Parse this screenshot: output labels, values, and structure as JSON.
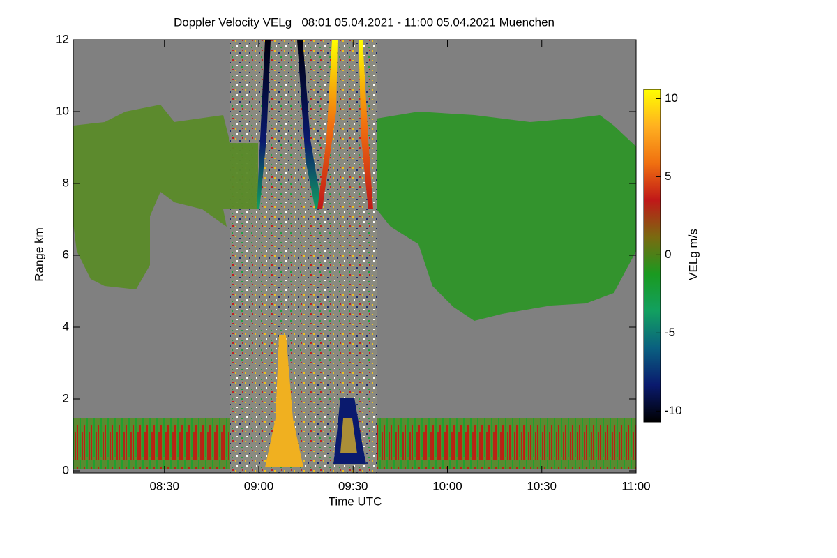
{
  "chart_data": {
    "type": "heatmap",
    "title": "Doppler Velocity VELg   08:01 05.04.2021 - 11:00 05.04.2021 Muenchen",
    "x_label": "Time UTC",
    "y_label": "Range km",
    "xlim": [
      "08:01",
      "11:00"
    ],
    "xticks": [
      "08:30",
      "09:00",
      "09:30",
      "10:00",
      "10:30",
      "11:00"
    ],
    "ylim": [
      0,
      12
    ],
    "yticks": [
      0,
      2,
      4,
      6,
      8,
      10,
      12
    ],
    "colorbar": {
      "label": "VELg m/s",
      "zlim": [
        -10.7,
        10.6
      ],
      "zticks": [
        -10,
        -5,
        0,
        5,
        10
      ],
      "colormap": [
        "#000000",
        "#0a1a6e",
        "#0a6080",
        "#12a060",
        "#1a9a20",
        "#7a6a10",
        "#c01818",
        "#f07010",
        "#ffb020",
        "#ffff00"
      ]
    }
  }
}
